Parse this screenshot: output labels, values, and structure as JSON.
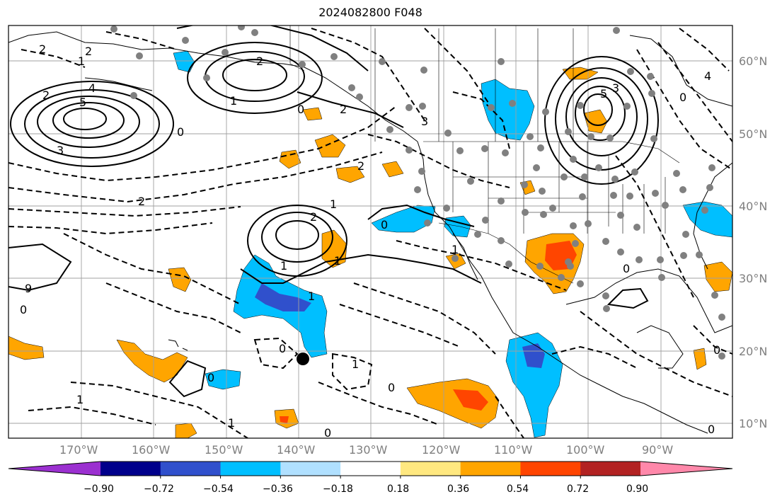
{
  "title": "2024082800 F048",
  "lat_labels": [
    "60°N",
    "50°N",
    "40°N",
    "30°N",
    "20°N",
    "10°N"
  ],
  "lon_labels": [
    "170°W",
    "160°W",
    "150°W",
    "140°W",
    "130°W",
    "120°W",
    "110°W",
    "100°W",
    "90°W"
  ],
  "colorbar": {
    "colors": [
      "#9b30d0",
      "#00008b",
      "#3050cc",
      "#00bfff",
      "#b0e0ff",
      "#ffffff",
      "#ffe880",
      "#ffa500",
      "#ff4500",
      "#b22222",
      "#ff88aa"
    ],
    "tick_labels": [
      "−0.90",
      "−0.72",
      "−0.54",
      "−0.36",
      "−0.18",
      "0.18",
      "0.36",
      "0.54",
      "0.72",
      "0.90"
    ]
  },
  "contour_labels": [
    "2",
    "1",
    "2",
    "5",
    "4",
    "3",
    "2",
    "1",
    "0",
    "2",
    "0",
    "3",
    "2",
    "5",
    "3",
    "4",
    "0",
    "1",
    "2",
    "0",
    "2",
    "2",
    "1",
    "1",
    "1",
    "1",
    "0",
    "9",
    "0",
    "0",
    "0",
    "1",
    "1",
    "0",
    "0",
    "0",
    "0",
    "1"
  ],
  "storm_marker": {
    "lat": 19,
    "lon": -139
  }
}
